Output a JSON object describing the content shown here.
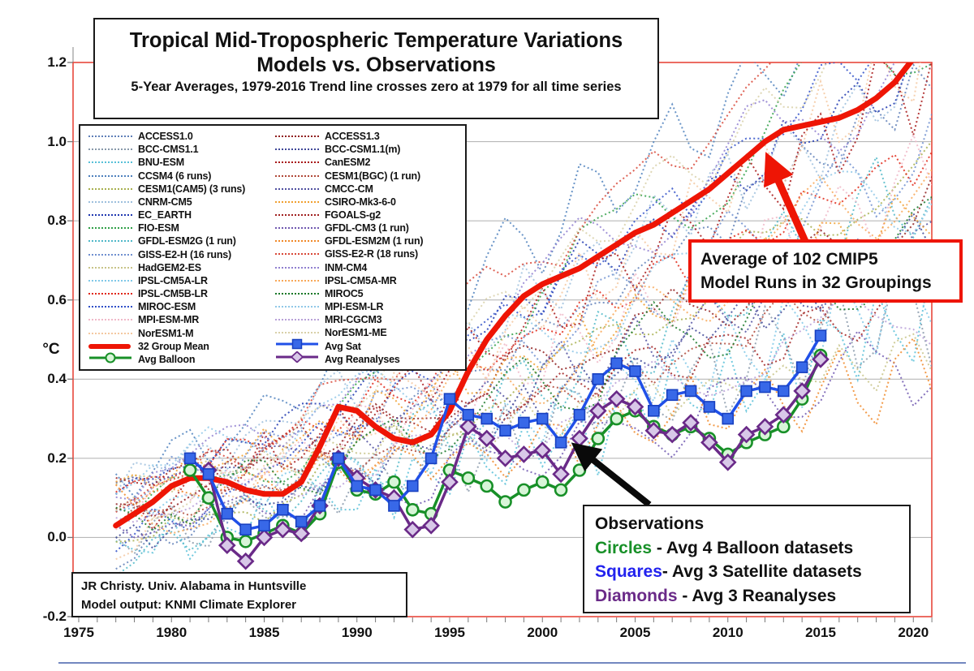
{
  "chart_data": {
    "type": "line",
    "title_line1": "Tropical Mid-Tropospheric Temperature Variations",
    "title_line2": "Models vs. Observations",
    "subtitle": "5-Year Averages, 1979-2016 Trend line crosses zero at 1979 for all time series",
    "ylabel": "°C",
    "xlim": [
      1975,
      2021
    ],
    "ylim": [
      -0.2,
      1.2
    ],
    "grid": true,
    "legend_position": "upper-left",
    "x_tick_labels": [
      "1975",
      "1980",
      "1985",
      "1990",
      "1995",
      "2000",
      "2005",
      "2010",
      "2015",
      "2020"
    ],
    "x_tick_values": [
      1975,
      1980,
      1985,
      1990,
      1995,
      2000,
      2005,
      2010,
      2015,
      2020
    ],
    "y_tick_labels": [
      "1.2",
      "1.0",
      "0.8",
      "0.6",
      "0.4",
      "0.2",
      "0.0",
      "-0.2"
    ],
    "y_tick_values": [
      1.2,
      1.0,
      0.8,
      0.6,
      0.4,
      0.2,
      0.0,
      -0.2
    ],
    "models": [
      {
        "name": "ACCESS1.0",
        "color": "#6080b8"
      },
      {
        "name": "BCC-CMS1.1",
        "color": "#8899aa"
      },
      {
        "name": "BNU-ESM",
        "color": "#58c0d8"
      },
      {
        "name": "CCSM4 (6 runs)",
        "color": "#4f81bd"
      },
      {
        "name": "CESM1(CAM5) (3 runs)",
        "color": "#a8b050"
      },
      {
        "name": "CNRM-CM5",
        "color": "#9ec0dd"
      },
      {
        "name": "EC_EARTH",
        "color": "#2038b0"
      },
      {
        "name": "FIO-ESM",
        "color": "#30a048"
      },
      {
        "name": "GFDL-ESM2G (1 run)",
        "color": "#50b8c8"
      },
      {
        "name": "GISS-E2-H (16 runs)",
        "color": "#7090d0"
      },
      {
        "name": "HadGEM2-ES",
        "color": "#c8c488"
      },
      {
        "name": "IPSL-CM5A-LR",
        "color": "#80c8e8"
      },
      {
        "name": "IPSL-CM5B-LR",
        "color": "#e02818"
      },
      {
        "name": "MIROC-ESM",
        "color": "#3050c8"
      },
      {
        "name": "MPI-ESM-MR",
        "color": "#f0b8c8"
      },
      {
        "name": "NorESM1-M",
        "color": "#f4c8a0"
      },
      {
        "name": "ACCESS1.3",
        "color": "#902020"
      },
      {
        "name": "BCC-CSM1.1(m)",
        "color": "#404898"
      },
      {
        "name": "CanESM2",
        "color": "#a81818"
      },
      {
        "name": "CESM1(BGC) (1 run)",
        "color": "#b04838"
      },
      {
        "name": "CMCC-CM",
        "color": "#5050a0"
      },
      {
        "name": "CSIRO-Mk3-6-0",
        "color": "#f0a030"
      },
      {
        "name": "FGOALS-g2",
        "color": "#a02020"
      },
      {
        "name": "GFDL-CM3 (1 run)",
        "color": "#7058b0"
      },
      {
        "name": "GFDL-ESM2M (1 run)",
        "color": "#f08828"
      },
      {
        "name": "GISS-E2-R (18 runs)",
        "color": "#d84838"
      },
      {
        "name": "INM-CM4",
        "color": "#9080d0"
      },
      {
        "name": "IPSL-CM5A-MR",
        "color": "#f8a858"
      },
      {
        "name": "MIROC5",
        "color": "#187828"
      },
      {
        "name": "MPI-ESM-LR",
        "color": "#90c8e8"
      },
      {
        "name": "MRI-CGCM3",
        "color": "#b8a0d8"
      },
      {
        "name": "NorESM1-ME",
        "color": "#d8d0a8"
      }
    ],
    "series": [
      {
        "key": "mean",
        "name": "32 Group Mean",
        "style": "thick-solid",
        "color": "#ee1505",
        "x_start": 1977,
        "values": [
          0.03,
          0.06,
          0.09,
          0.13,
          0.15,
          0.15,
          0.14,
          0.12,
          0.11,
          0.11,
          0.14,
          0.23,
          0.33,
          0.32,
          0.28,
          0.25,
          0.24,
          0.26,
          0.32,
          0.42,
          0.5,
          0.56,
          0.61,
          0.64,
          0.66,
          0.68,
          0.71,
          0.74,
          0.77,
          0.79,
          0.82,
          0.85,
          0.88,
          0.92,
          0.96,
          1.0,
          1.03,
          1.04,
          1.05,
          1.06,
          1.08,
          1.11,
          1.15,
          1.21,
          1.28
        ]
      },
      {
        "key": "balloon",
        "name": "Avg Balloon",
        "marker": "circle",
        "color": "#189028",
        "fill": "#d8f5d8",
        "x_start": 1981,
        "values": [
          0.17,
          0.1,
          0.0,
          -0.01,
          0.01,
          0.03,
          0.01,
          0.06,
          0.19,
          0.12,
          0.11,
          0.14,
          0.07,
          0.06,
          0.17,
          0.15,
          0.13,
          0.09,
          0.12,
          0.14,
          0.12,
          0.17,
          0.25,
          0.3,
          0.32,
          0.28,
          0.26,
          0.28,
          0.25,
          0.21,
          0.24,
          0.26,
          0.28,
          0.35,
          0.46
        ]
      },
      {
        "key": "rean",
        "name": "Avg Reanalyses",
        "marker": "diamond",
        "color": "#6a2a88",
        "fill": "#d8c8e8",
        "x_start": 1982,
        "values": [
          0.17,
          -0.02,
          -0.06,
          0.0,
          0.02,
          0.01,
          0.08,
          0.2,
          0.15,
          0.12,
          0.1,
          0.02,
          0.03,
          0.14,
          0.28,
          0.25,
          0.2,
          0.21,
          0.22,
          0.16,
          0.25,
          0.32,
          0.35,
          0.33,
          0.27,
          0.26,
          0.29,
          0.24,
          0.19,
          0.26,
          0.28,
          0.31,
          0.37,
          0.45
        ]
      },
      {
        "key": "sat",
        "name": "Avg Sat",
        "marker": "square",
        "color": "#2050e8",
        "fill": "#3868e8",
        "x_start": 1981,
        "values": [
          0.2,
          0.16,
          0.06,
          0.02,
          0.03,
          0.07,
          0.04,
          0.08,
          0.2,
          0.13,
          0.12,
          0.08,
          0.13,
          0.2,
          0.35,
          0.31,
          0.3,
          0.27,
          0.29,
          0.3,
          0.24,
          0.31,
          0.4,
          0.44,
          0.42,
          0.32,
          0.36,
          0.37,
          0.33,
          0.3,
          0.37,
          0.38,
          0.37,
          0.43,
          0.51
        ]
      }
    ]
  },
  "annotations": {
    "cmip5": {
      "line1": "Average of 102 CMIP5",
      "line2": "Model Runs in 32 Groupings"
    },
    "observations": {
      "title": "Observations",
      "items": [
        {
          "keyword": "Circles",
          "color": "#189028",
          "text": " - Avg 4 Balloon datasets"
        },
        {
          "keyword": "Squares",
          "color": "#2222ee",
          "text": "- Avg 3 Satellite datasets"
        },
        {
          "keyword": "Diamonds",
          "color": "#6a2a88",
          "text": " - Avg 3 Reanalyses"
        }
      ]
    },
    "attribution": {
      "line1": "JR Christy. Univ. Alabama in Huntsville",
      "line2": "Model output: KNMI Climate Explorer"
    }
  }
}
